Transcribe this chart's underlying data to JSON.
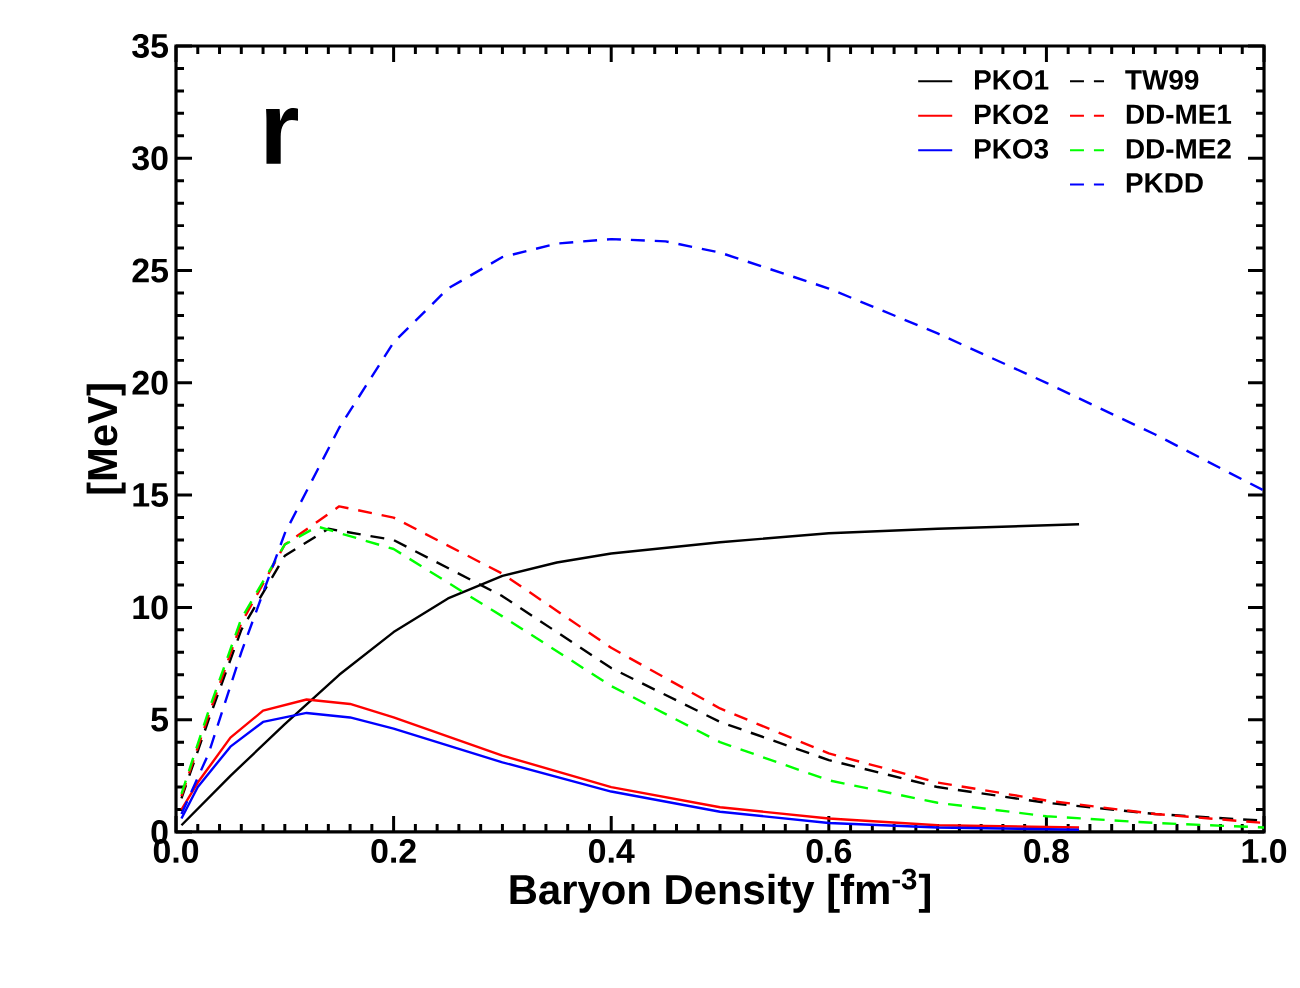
{
  "chart_data": {
    "type": "line",
    "xlabel": "Baryon Density [fm$^{-3}$]",
    "ylabel": "[MeV]",
    "annotations": [
      "r"
    ],
    "xlim": [
      0,
      1
    ],
    "ylim": [
      0,
      35
    ],
    "xticks": [
      {
        "value": 0,
        "label": "0.0"
      },
      {
        "value": 0.2,
        "label": "0.2"
      },
      {
        "value": 0.4,
        "label": "0.4"
      },
      {
        "value": 0.6,
        "label": "0.6"
      },
      {
        "value": 0.8,
        "label": "0.8"
      },
      {
        "value": 1,
        "label": "1.0"
      }
    ],
    "yticks": [
      0,
      5,
      10,
      15,
      20,
      25,
      30,
      35
    ],
    "legend": "top right",
    "grid": false,
    "marker": "none",
    "series": [
      {
        "name": "PKO1",
        "color": "#000000",
        "line_style": "solid",
        "x": [
          0.005,
          0.05,
          0.1,
          0.15,
          0.2,
          0.25,
          0.3,
          0.35,
          0.4,
          0.5,
          0.6,
          0.7,
          0.83
        ],
        "values": [
          0.3,
          2.5,
          4.8,
          7.0,
          8.9,
          10.4,
          11.4,
          12.0,
          12.4,
          12.9,
          13.3,
          13.5,
          13.7
        ]
      },
      {
        "name": "PKO2",
        "color": "#ff0000",
        "line_style": "solid",
        "x": [
          0.005,
          0.02,
          0.05,
          0.08,
          0.12,
          0.16,
          0.2,
          0.3,
          0.4,
          0.5,
          0.6,
          0.7,
          0.83
        ],
        "values": [
          1.0,
          2.2,
          4.2,
          5.4,
          5.9,
          5.7,
          5.1,
          3.4,
          2.0,
          1.1,
          0.6,
          0.3,
          0.2
        ]
      },
      {
        "name": "PKO3",
        "color": "#0000ff",
        "line_style": "solid",
        "x": [
          0.005,
          0.02,
          0.05,
          0.08,
          0.12,
          0.16,
          0.2,
          0.3,
          0.4,
          0.5,
          0.6,
          0.7,
          0.83
        ],
        "values": [
          0.6,
          2.0,
          3.8,
          4.9,
          5.3,
          5.1,
          4.6,
          3.1,
          1.8,
          0.9,
          0.4,
          0.2,
          0.1
        ]
      },
      {
        "name": "TW99",
        "color": "#000000",
        "line_style": "dashed",
        "x": [
          0.005,
          0.03,
          0.06,
          0.1,
          0.14,
          0.2,
          0.3,
          0.4,
          0.5,
          0.6,
          0.7,
          0.8,
          0.9,
          1.0
        ],
        "values": [
          1.5,
          5,
          9,
          12.3,
          13.5,
          13.0,
          10.5,
          7.3,
          4.9,
          3.2,
          2.0,
          1.3,
          0.8,
          0.5
        ]
      },
      {
        "name": "DD-ME1",
        "color": "#ff0000",
        "line_style": "dashed",
        "x": [
          0.005,
          0.03,
          0.06,
          0.1,
          0.15,
          0.2,
          0.3,
          0.4,
          0.5,
          0.6,
          0.7,
          0.8,
          0.9,
          1.0
        ],
        "values": [
          1.6,
          5.2,
          9.3,
          12.8,
          14.5,
          14.0,
          11.5,
          8.2,
          5.5,
          3.5,
          2.2,
          1.4,
          0.8,
          0.4
        ]
      },
      {
        "name": "DD-ME2",
        "color": "#00ff00",
        "line_style": "dashed",
        "x": [
          0.005,
          0.03,
          0.06,
          0.1,
          0.13,
          0.2,
          0.3,
          0.4,
          0.5,
          0.6,
          0.7,
          0.8,
          0.9,
          1.0
        ],
        "values": [
          1.7,
          5.4,
          9.5,
          12.8,
          13.6,
          12.6,
          9.6,
          6.5,
          4.0,
          2.3,
          1.3,
          0.7,
          0.4,
          0.2
        ]
      },
      {
        "name": "PKDD",
        "color": "#0000ff",
        "line_style": "dashed",
        "x": [
          0.005,
          0.03,
          0.06,
          0.1,
          0.15,
          0.2,
          0.25,
          0.3,
          0.35,
          0.4,
          0.45,
          0.5,
          0.6,
          0.7,
          0.8,
          0.9,
          1.0
        ],
        "values": [
          0.8,
          3.5,
          8,
          13.3,
          18,
          21.8,
          24.2,
          25.6,
          26.2,
          26.4,
          26.3,
          25.8,
          24.2,
          22.2,
          20.0,
          17.7,
          15.2
        ]
      }
    ]
  }
}
